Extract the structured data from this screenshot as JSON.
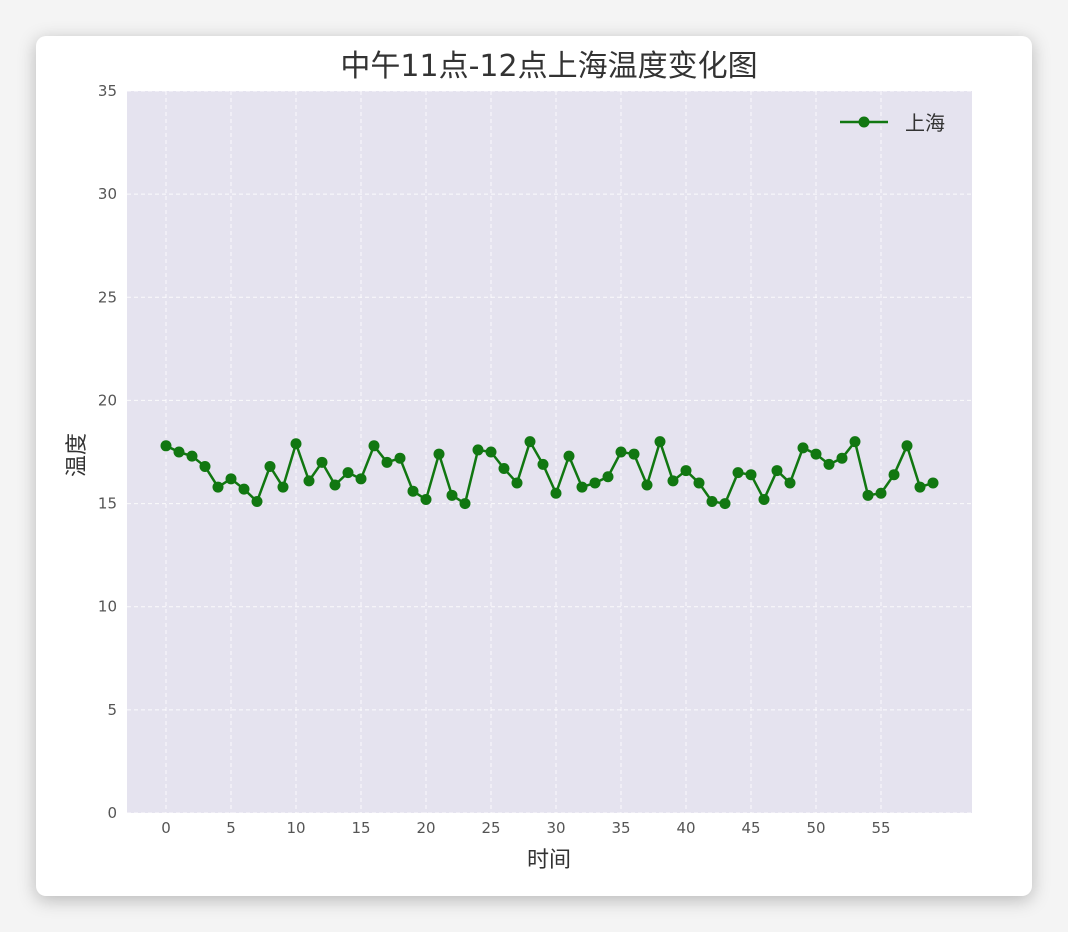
{
  "chart_data": {
    "type": "line",
    "title": "中午11点-12点上海温度变化图",
    "xlabel": "时间",
    "ylabel": "温度",
    "xlim": [
      -3,
      62
    ],
    "ylim": [
      0,
      35
    ],
    "xticks": [
      0,
      5,
      10,
      15,
      20,
      25,
      30,
      35,
      40,
      45,
      50,
      55
    ],
    "yticks": [
      0,
      5,
      10,
      15,
      20,
      25,
      30,
      35
    ],
    "grid": true,
    "legend_position": "top-right",
    "series": [
      {
        "name": "上海",
        "color": "#117711",
        "marker": "circle",
        "x": [
          0,
          1,
          2,
          3,
          4,
          5,
          6,
          7,
          8,
          9,
          10,
          11,
          12,
          13,
          14,
          15,
          16,
          17,
          18,
          19,
          20,
          21,
          22,
          23,
          24,
          25,
          26,
          27,
          28,
          29,
          30,
          31,
          32,
          33,
          34,
          35,
          36,
          37,
          38,
          39,
          40,
          41,
          42,
          43,
          44,
          45,
          46,
          47,
          48,
          49,
          50,
          51,
          52,
          53,
          54,
          55,
          56,
          57,
          58,
          59
        ],
        "y": [
          17.8,
          17.5,
          17.3,
          16.8,
          15.8,
          16.2,
          15.7,
          15.1,
          16.8,
          15.8,
          17.9,
          16.1,
          17.0,
          15.9,
          16.5,
          16.2,
          17.8,
          17.0,
          17.2,
          15.6,
          15.2,
          17.4,
          15.4,
          15.0,
          17.6,
          17.5,
          16.7,
          16.0,
          18.0,
          16.9,
          15.5,
          17.3,
          15.8,
          16.0,
          16.3,
          17.5,
          17.4,
          15.9,
          18.0,
          16.1,
          16.6,
          16.0,
          15.1,
          15.0,
          16.5,
          16.4,
          15.2,
          16.6,
          16.0,
          17.7,
          17.4,
          16.9,
          17.2,
          18.0,
          15.4,
          15.5,
          16.4,
          17.8,
          15.8,
          16.0
        ]
      }
    ]
  },
  "colors": {
    "plot_background": "#e5e3ef",
    "grid": "#ffffff",
    "line": "#117711"
  }
}
